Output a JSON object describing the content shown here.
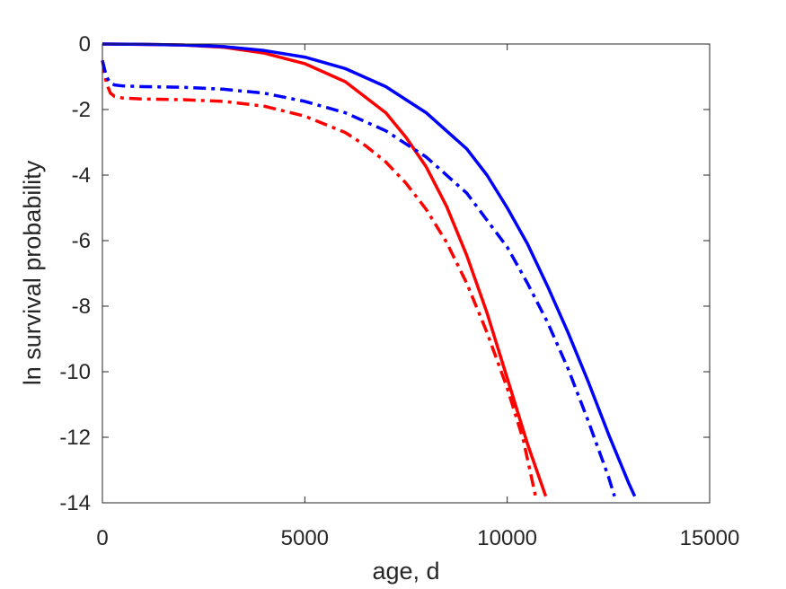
{
  "chart_data": {
    "type": "line",
    "title": "",
    "xlabel": "age, d",
    "ylabel": "ln survival probability",
    "xlim": [
      0,
      15000
    ],
    "ylim": [
      -14,
      0
    ],
    "xticks": [
      0,
      5000,
      10000,
      15000
    ],
    "xtick_labels": [
      "0",
      "5000",
      "10000",
      "15000"
    ],
    "yticks": [
      0,
      -2,
      -4,
      -6,
      -8,
      -10,
      -12,
      -14
    ],
    "ytick_labels": [
      "0",
      "-2",
      "-4",
      "-6",
      "-8",
      "-10",
      "-12",
      "-14"
    ],
    "grid": false,
    "legend": "none",
    "series": [
      {
        "color": "#ff0000",
        "style": "solid",
        "x": [
          0,
          1000,
          2000,
          3000,
          4000,
          5000,
          6000,
          7000,
          7500,
          8000,
          8500,
          9000,
          9500,
          10000,
          10500,
          10950
        ],
        "y": [
          0,
          -0.01,
          -0.03,
          -0.1,
          -0.28,
          -0.6,
          -1.15,
          -2.1,
          -2.85,
          -3.75,
          -4.95,
          -6.45,
          -8.2,
          -10.2,
          -12.2,
          -13.8
        ]
      },
      {
        "color": "#0000ff",
        "style": "solid",
        "x": [
          0,
          1000,
          2000,
          3000,
          4000,
          5000,
          6000,
          7000,
          8000,
          9000,
          9500,
          10000,
          10500,
          11000,
          11500,
          12000,
          12500,
          13000,
          13150
        ],
        "y": [
          0,
          -0.01,
          -0.03,
          -0.08,
          -0.2,
          -0.4,
          -0.75,
          -1.3,
          -2.1,
          -3.2,
          -4.0,
          -5.0,
          -6.1,
          -7.4,
          -8.8,
          -10.3,
          -11.9,
          -13.4,
          -13.8
        ]
      },
      {
        "color": "#ff0000",
        "style": "dashdot",
        "x": [
          0,
          100,
          200,
          300,
          500,
          1000,
          2000,
          3000,
          4000,
          5000,
          6000,
          6500,
          7000,
          7500,
          8000,
          8500,
          9000,
          9500,
          10000,
          10400,
          10700
        ],
        "y": [
          -0.5,
          -1.2,
          -1.5,
          -1.6,
          -1.65,
          -1.68,
          -1.7,
          -1.75,
          -1.9,
          -2.2,
          -2.7,
          -3.1,
          -3.6,
          -4.25,
          -5.05,
          -6.05,
          -7.3,
          -8.8,
          -10.5,
          -12.1,
          -13.8
        ]
      },
      {
        "color": "#0000ff",
        "style": "dashdot",
        "x": [
          0,
          100,
          200,
          300,
          500,
          1000,
          2000,
          3000,
          4000,
          5000,
          6000,
          7000,
          8000,
          9000,
          10000,
          10500,
          11000,
          11500,
          12000,
          12500,
          12650
        ],
        "y": [
          -0.5,
          -1.0,
          -1.2,
          -1.25,
          -1.28,
          -1.3,
          -1.32,
          -1.38,
          -1.5,
          -1.75,
          -2.1,
          -2.65,
          -3.45,
          -4.55,
          -6.2,
          -7.3,
          -8.5,
          -9.9,
          -11.5,
          -13.2,
          -13.8
        ]
      }
    ]
  }
}
